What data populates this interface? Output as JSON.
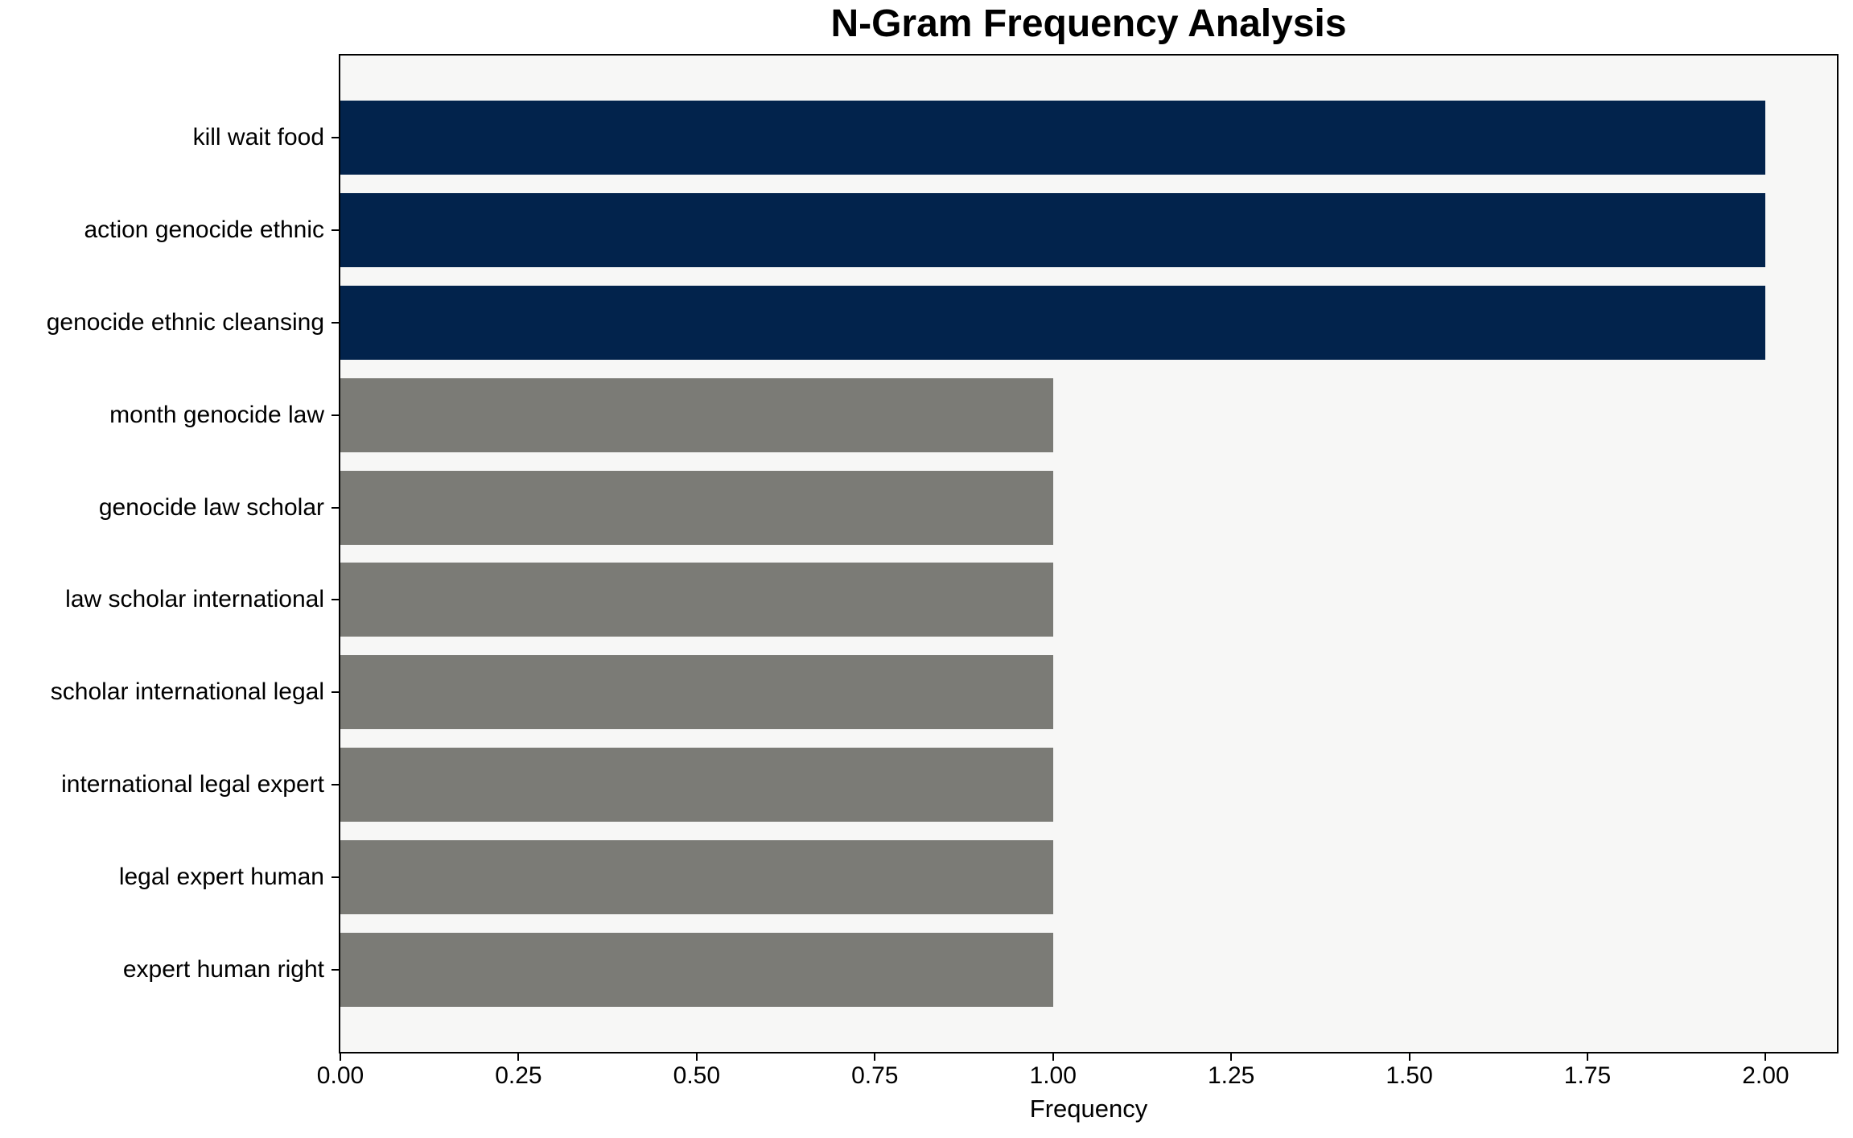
{
  "chart_data": {
    "type": "bar",
    "orientation": "horizontal",
    "title": "N-Gram Frequency Analysis",
    "xlabel": "Frequency",
    "ylabel": "",
    "categories": [
      "kill wait food",
      "action genocide ethnic",
      "genocide ethnic cleansing",
      "month genocide law",
      "genocide law scholar",
      "law scholar international",
      "scholar international legal",
      "international legal expert",
      "legal expert human",
      "expert human right"
    ],
    "values": [
      2,
      2,
      2,
      1,
      1,
      1,
      1,
      1,
      1,
      1
    ],
    "bar_colors": [
      "#02234c",
      "#02234c",
      "#02234c",
      "#7b7b76",
      "#7b7b76",
      "#7b7b76",
      "#7b7b76",
      "#7b7b76",
      "#7b7b76",
      "#7b7b76"
    ],
    "xlim": [
      0,
      2.1
    ],
    "xtick_values": [
      0.0,
      0.25,
      0.5,
      0.75,
      1.0,
      1.25,
      1.5,
      1.75,
      2.0
    ],
    "xtick_labels": [
      "0.00",
      "0.25",
      "0.50",
      "0.75",
      "1.00",
      "1.25",
      "1.50",
      "1.75",
      "2.00"
    ],
    "grid": false,
    "legend": null,
    "colors": {
      "highlight_bar": "#02234c",
      "default_bar": "#7b7b76",
      "plot_background": "#f7f7f6",
      "figure_background": "#ffffff",
      "axis": "#000000",
      "text": "#000000"
    }
  }
}
